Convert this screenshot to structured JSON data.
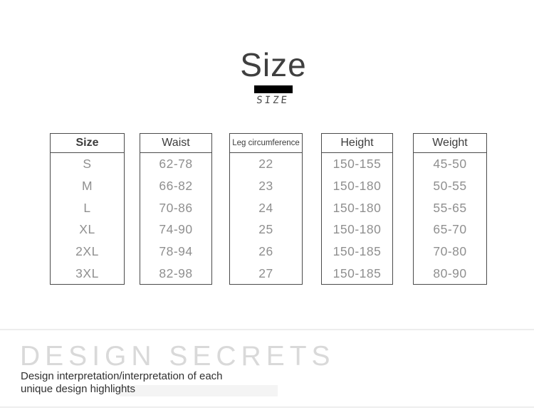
{
  "header": {
    "title": "Size",
    "script_label": "SIZE"
  },
  "size_chart": {
    "columns": [
      {
        "header": "Size",
        "values": [
          "S",
          "M",
          "L",
          "XL",
          "2XL",
          "3XL"
        ]
      },
      {
        "header": "Waist",
        "values": [
          "62-78",
          "66-82",
          "70-86",
          "74-90",
          "78-94",
          "82-98"
        ]
      },
      {
        "header": "Leg circumference",
        "values": [
          "22",
          "23",
          "24",
          "25",
          "26",
          "27"
        ]
      },
      {
        "header": "Height",
        "values": [
          "150-155",
          "150-180",
          "150-180",
          "150-180",
          "150-185",
          "150-185"
        ]
      },
      {
        "header": "Weight",
        "values": [
          "45-50",
          "50-55",
          "55-65",
          "65-70",
          "70-80",
          "80-90"
        ]
      }
    ]
  },
  "footer": {
    "heading": "DESIGN SECRETS",
    "caption_line1": "Design interpretation/interpretation of each",
    "caption_line2": "unique design highlights"
  },
  "colors": {
    "accent_bar": "#000000",
    "title_text": "#3f3f3f",
    "table_border": "#4b4b4b",
    "table_header_text": "#3c3c3c",
    "table_body_text": "#8f8f8f",
    "footer_heading_text": "#d9d9d9",
    "caption_text": "#303030",
    "divider": "#ededed"
  }
}
